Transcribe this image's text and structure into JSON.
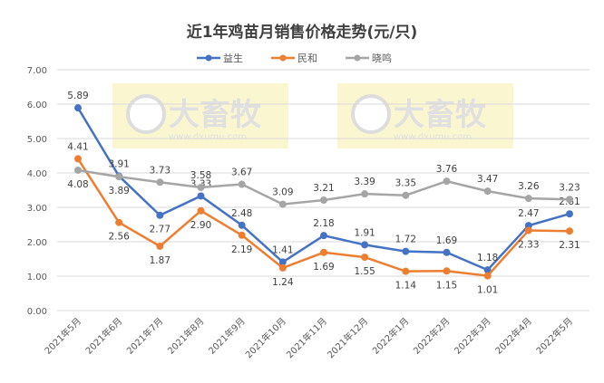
{
  "chart_data": {
    "type": "line",
    "title": "近1年鸡苗月销售价格走势(元/只)",
    "xlabel": "",
    "ylabel": "",
    "ylim": [
      0,
      7
    ],
    "yticks": [
      "0.00",
      "1.00",
      "2.00",
      "3.00",
      "4.00",
      "5.00",
      "6.00",
      "7.00"
    ],
    "grid": true,
    "legend_position": "top",
    "categories": [
      "2021年5月",
      "2021年6月",
      "2021年7月",
      "2021年8月",
      "2021年9月",
      "2021年10月",
      "2021年11月",
      "2021年12月",
      "2022年1月",
      "2022年2月",
      "2022年3月",
      "2022年4月",
      "2022年5月"
    ],
    "series": [
      {
        "name": "益生",
        "color": "#4472c4",
        "values": [
          5.89,
          3.91,
          2.77,
          3.33,
          2.48,
          1.41,
          2.18,
          1.91,
          1.72,
          1.69,
          1.18,
          2.47,
          2.81
        ],
        "labels": [
          "5.89",
          "3.91",
          "2.77",
          "3.33",
          "2.48",
          "1.41",
          "2.18",
          "1.91",
          "1.72",
          "1.69",
          "1.18",
          "2.47",
          "2.81"
        ],
        "label_pos": [
          "above",
          "above",
          "below",
          "above",
          "above",
          "above",
          "above",
          "above",
          "above",
          "above",
          "above",
          "above",
          "above"
        ]
      },
      {
        "name": "民和",
        "color": "#ed7d31",
        "values": [
          4.41,
          2.56,
          1.87,
          2.9,
          2.19,
          1.24,
          1.69,
          1.55,
          1.14,
          1.15,
          1.01,
          2.33,
          2.31
        ],
        "labels": [
          "4.41",
          "2.56",
          "1.87",
          "2.90",
          "2.19",
          "1.24",
          "1.69",
          "1.55",
          "1.14",
          "1.15",
          "1.01",
          "2.33",
          "2.31"
        ],
        "label_pos": [
          "above",
          "below",
          "below",
          "below",
          "below",
          "below",
          "below",
          "below",
          "below",
          "below",
          "below",
          "below",
          "below"
        ]
      },
      {
        "name": "晓鸣",
        "color": "#a5a5a5",
        "values": [
          4.08,
          3.89,
          3.73,
          3.58,
          3.67,
          3.09,
          3.21,
          3.39,
          3.35,
          3.76,
          3.47,
          3.26,
          3.23
        ],
        "labels": [
          "4.08",
          "3.89",
          "3.73",
          "3.58",
          "3.67",
          "3.09",
          "3.21",
          "3.39",
          "3.35",
          "3.76",
          "3.47",
          "3.26",
          "3.23"
        ],
        "label_pos": [
          "below",
          "below",
          "above",
          "above",
          "above",
          "above",
          "above",
          "above",
          "above",
          "above",
          "above",
          "above",
          "above"
        ]
      }
    ]
  },
  "watermark": {
    "text": "大畜牧",
    "url": "www.dxumu.com"
  }
}
